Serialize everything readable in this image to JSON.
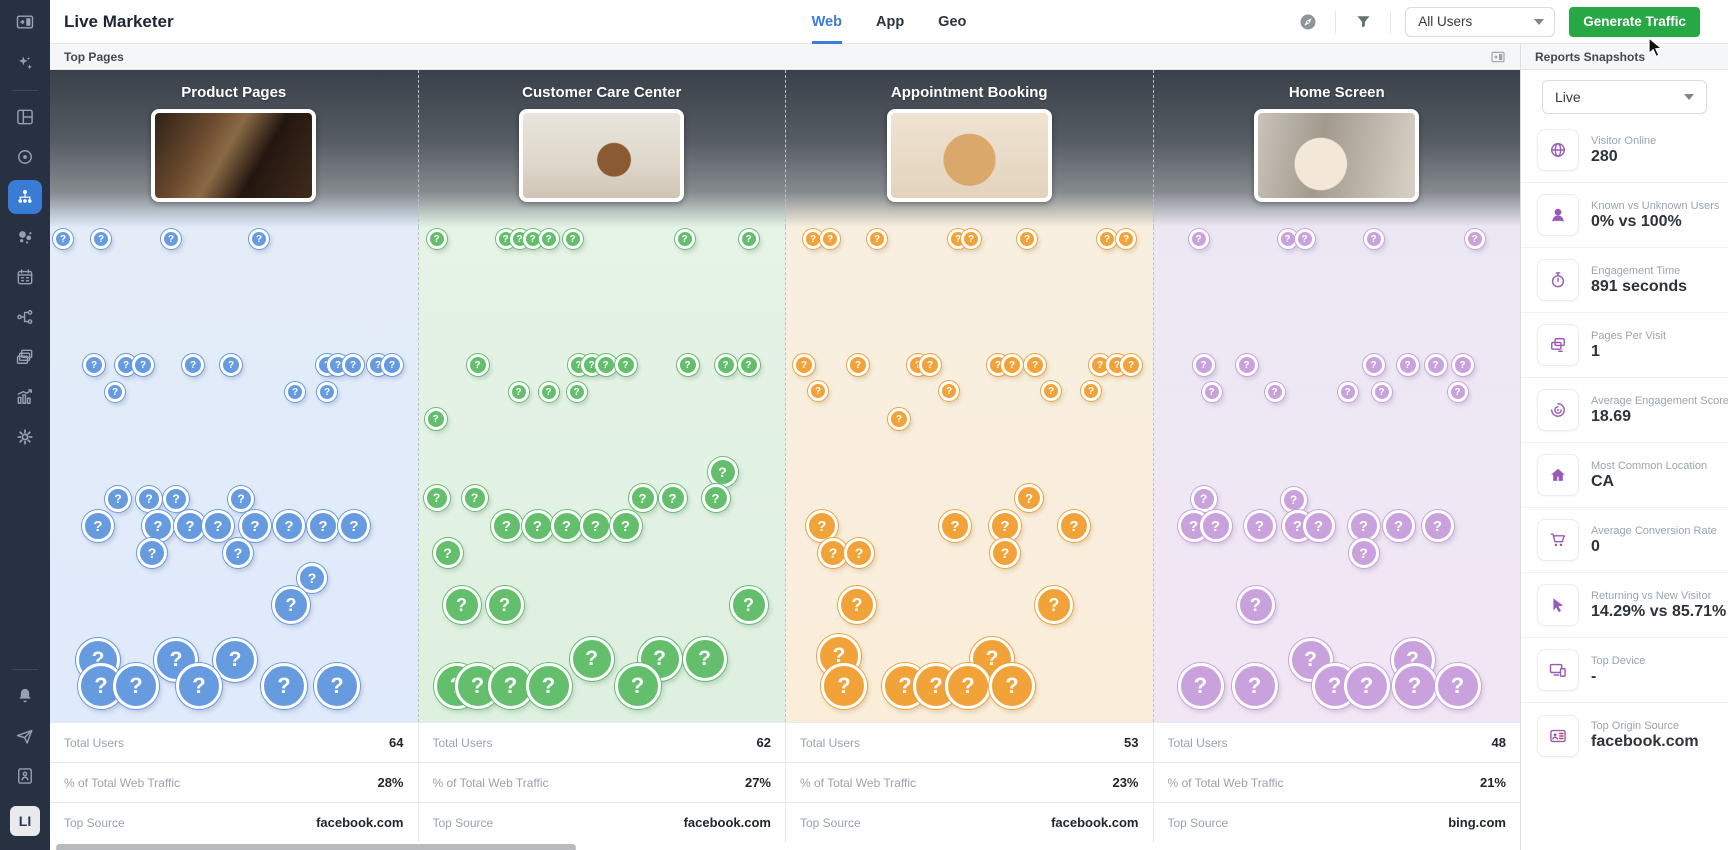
{
  "app": {
    "title": "Live Marketer"
  },
  "topbar": {
    "tabs": [
      {
        "label": "Web"
      },
      {
        "label": "App"
      },
      {
        "label": "Geo"
      }
    ],
    "active_tab": "Web",
    "user_filter": "All Users",
    "generate_button": "Generate Traffic"
  },
  "main_header": {
    "title": "Top Pages"
  },
  "stats_labels": {
    "total_users": "Total Users",
    "traffic_pct": "% of Total Web Traffic",
    "top_source": "Top Source"
  },
  "columns": [
    {
      "title": "Product Pages",
      "total_users": "64",
      "traffic_pct": "28%",
      "top_source": "facebook.com"
    },
    {
      "title": "Customer Care Center",
      "total_users": "62",
      "traffic_pct": "27%",
      "top_source": "facebook.com"
    },
    {
      "title": "Appointment Booking",
      "total_users": "53",
      "traffic_pct": "23%",
      "top_source": "facebook.com"
    },
    {
      "title": "Home Screen",
      "total_users": "48",
      "traffic_pct": "21%",
      "top_source": "bing.com"
    }
  ],
  "bubble_glyph": "?",
  "bubble_columns": [
    [
      [
        13,
        12,
        10
      ],
      [
        51,
        12,
        10
      ],
      [
        121,
        12,
        10
      ],
      [
        209,
        12,
        10
      ],
      [
        44,
        138,
        11
      ],
      [
        76,
        138,
        11
      ],
      [
        93,
        138,
        11
      ],
      [
        143,
        138,
        11
      ],
      [
        181,
        138,
        11
      ],
      [
        277,
        138,
        11
      ],
      [
        288,
        138,
        11
      ],
      [
        303,
        138,
        11
      ],
      [
        328,
        138,
        11
      ],
      [
        342,
        138,
        11
      ],
      [
        65,
        165,
        10
      ],
      [
        245,
        165,
        10
      ],
      [
        277,
        165,
        10
      ],
      [
        68,
        272,
        13
      ],
      [
        99,
        272,
        13
      ],
      [
        126,
        272,
        13
      ],
      [
        191,
        272,
        13
      ],
      [
        48,
        299,
        16
      ],
      [
        108,
        299,
        16
      ],
      [
        140,
        299,
        16
      ],
      [
        168,
        299,
        16
      ],
      [
        205,
        299,
        16
      ],
      [
        239,
        299,
        16
      ],
      [
        273,
        299,
        16
      ],
      [
        304,
        299,
        16
      ],
      [
        102,
        326,
        15
      ],
      [
        188,
        326,
        15
      ],
      [
        262,
        351,
        15
      ],
      [
        241,
        378,
        19
      ],
      [
        48,
        433,
        22
      ],
      [
        126,
        433,
        22
      ],
      [
        185,
        433,
        22
      ],
      [
        51,
        459,
        23
      ],
      [
        86,
        459,
        23
      ],
      [
        149,
        459,
        23
      ],
      [
        234,
        459,
        23
      ],
      [
        287,
        459,
        23
      ]
    ],
    [
      [
        18,
        12,
        10
      ],
      [
        87,
        12,
        10
      ],
      [
        101,
        12,
        10
      ],
      [
        114,
        12,
        10
      ],
      [
        130,
        12,
        10
      ],
      [
        154,
        12,
        10
      ],
      [
        266,
        12,
        10
      ],
      [
        330,
        12,
        10
      ],
      [
        59,
        138,
        11
      ],
      [
        160,
        138,
        11
      ],
      [
        173,
        138,
        11
      ],
      [
        187,
        138,
        11
      ],
      [
        207,
        138,
        11
      ],
      [
        269,
        138,
        11
      ],
      [
        307,
        138,
        11
      ],
      [
        330,
        138,
        11
      ],
      [
        100,
        165,
        10
      ],
      [
        130,
        165,
        10
      ],
      [
        158,
        165,
        10
      ],
      [
        17,
        192,
        11
      ],
      [
        304,
        245,
        15
      ],
      [
        18,
        271,
        13
      ],
      [
        56,
        271,
        13
      ],
      [
        224,
        271,
        14
      ],
      [
        254,
        271,
        14
      ],
      [
        297,
        271,
        14
      ],
      [
        88,
        299,
        16
      ],
      [
        119,
        299,
        16
      ],
      [
        148,
        299,
        16
      ],
      [
        177,
        299,
        16
      ],
      [
        207,
        299,
        16
      ],
      [
        29,
        326,
        15
      ],
      [
        43,
        378,
        19
      ],
      [
        86,
        378,
        19
      ],
      [
        330,
        378,
        19
      ],
      [
        173,
        432,
        22
      ],
      [
        241,
        432,
        22
      ],
      [
        286,
        432,
        22
      ],
      [
        38,
        459,
        23
      ],
      [
        59,
        459,
        23
      ],
      [
        92,
        459,
        23
      ],
      [
        130,
        459,
        23
      ],
      [
        219,
        459,
        23
      ]
    ],
    [
      [
        27,
        12,
        10
      ],
      [
        44,
        12,
        10
      ],
      [
        91,
        12,
        10
      ],
      [
        172,
        12,
        10
      ],
      [
        185,
        12,
        10
      ],
      [
        241,
        12,
        10
      ],
      [
        321,
        12,
        10
      ],
      [
        340,
        12,
        10
      ],
      [
        18,
        138,
        11
      ],
      [
        72,
        138,
        11
      ],
      [
        132,
        138,
        11
      ],
      [
        144,
        138,
        11
      ],
      [
        212,
        138,
        11
      ],
      [
        226,
        138,
        11
      ],
      [
        249,
        138,
        11
      ],
      [
        314,
        138,
        11
      ],
      [
        331,
        138,
        11
      ],
      [
        345,
        138,
        11
      ],
      [
        32,
        164,
        10
      ],
      [
        163,
        164,
        10
      ],
      [
        265,
        164,
        10
      ],
      [
        305,
        164,
        10
      ],
      [
        113,
        192,
        11
      ],
      [
        243,
        271,
        14
      ],
      [
        36,
        299,
        16
      ],
      [
        169,
        299,
        16
      ],
      [
        219,
        299,
        16
      ],
      [
        288,
        299,
        16
      ],
      [
        47,
        326,
        15
      ],
      [
        73,
        326,
        15
      ],
      [
        219,
        326,
        15
      ],
      [
        71,
        378,
        19
      ],
      [
        268,
        378,
        19
      ],
      [
        53,
        429,
        22
      ],
      [
        206,
        432,
        22
      ],
      [
        58,
        459,
        23
      ],
      [
        119,
        459,
        23
      ],
      [
        150,
        459,
        23
      ],
      [
        182,
        459,
        23
      ],
      [
        226,
        459,
        23
      ]
    ],
    [
      [
        45,
        12,
        10
      ],
      [
        134,
        12,
        10
      ],
      [
        151,
        12,
        10
      ],
      [
        220,
        12,
        10
      ],
      [
        321,
        12,
        10
      ],
      [
        50,
        138,
        11
      ],
      [
        93,
        138,
        11
      ],
      [
        220,
        138,
        11
      ],
      [
        254,
        138,
        11
      ],
      [
        282,
        138,
        11
      ],
      [
        309,
        138,
        11
      ],
      [
        58,
        165,
        10
      ],
      [
        121,
        165,
        10
      ],
      [
        194,
        165,
        10
      ],
      [
        228,
        165,
        10
      ],
      [
        304,
        165,
        10
      ],
      [
        50,
        272,
        13
      ],
      [
        140,
        273,
        13
      ],
      [
        40,
        299,
        16
      ],
      [
        62,
        299,
        16
      ],
      [
        106,
        299,
        16
      ],
      [
        144,
        299,
        16
      ],
      [
        165,
        299,
        16
      ],
      [
        210,
        299,
        16
      ],
      [
        245,
        299,
        16
      ],
      [
        284,
        299,
        16
      ],
      [
        210,
        326,
        15
      ],
      [
        102,
        378,
        19
      ],
      [
        157,
        433,
        22
      ],
      [
        259,
        433,
        22
      ],
      [
        47,
        459,
        23
      ],
      [
        101,
        459,
        23
      ],
      [
        181,
        459,
        23
      ],
      [
        213,
        459,
        23
      ],
      [
        261,
        459,
        23
      ],
      [
        304,
        459,
        23
      ]
    ]
  ],
  "right_panel": {
    "title": "Reports Snapshots",
    "mode_select": "Live",
    "metrics": [
      {
        "label": "Visitor Online",
        "value": "280",
        "icon": "globe-icon"
      },
      {
        "label": "Known vs Unknown Users",
        "value": "0% vs 100%",
        "icon": "user-icon"
      },
      {
        "label": "Engagement Time",
        "value": "891 seconds",
        "icon": "stopwatch-icon"
      },
      {
        "label": "Pages Per Visit",
        "value": "1",
        "icon": "pages-icon"
      },
      {
        "label": "Average Engagement Score",
        "value": "18.69",
        "icon": "target-score-icon"
      },
      {
        "label": "Most Common Location",
        "value": "CA",
        "icon": "home-icon"
      },
      {
        "label": "Average Conversion Rate",
        "value": "0",
        "icon": "cart-icon"
      },
      {
        "label": "Returning vs New Visitor",
        "value": "14.29% vs 85.71%",
        "icon": "cursor-icon"
      },
      {
        "label": "Top Device",
        "value": "-",
        "icon": "devices-icon"
      },
      {
        "label": "Top Origin Source",
        "value": "facebook.com",
        "icon": "idcard-icon"
      }
    ]
  },
  "sidebar": {
    "logo_text": "LI"
  },
  "colors": {
    "accent_blue": "#3b7dd8",
    "button_green": "#28a745",
    "bubble_blue": "#679be0",
    "bubble_green": "#63bf6c",
    "bubble_orange": "#f1a33a",
    "bubble_purple": "#c9a2dd",
    "metric_icon_purple": "#9b59b6",
    "sidebar_bg": "#273142"
  }
}
